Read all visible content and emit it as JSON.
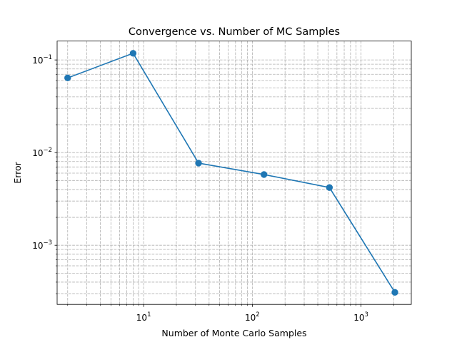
{
  "chart_data": {
    "type": "line",
    "title": "Convergence vs. Number of MC Samples",
    "xlabel": "Number of Monte Carlo Samples",
    "ylabel": "Error",
    "xscale": "log",
    "yscale": "log",
    "xlim": [
      1.6,
      2900
    ],
    "ylim": [
      0.00023,
      0.16
    ],
    "grid": true,
    "grid_which": "both",
    "grid_style": "dashed",
    "x_tick_labels": [
      {
        "value": 10,
        "base": "10",
        "exp": "1"
      },
      {
        "value": 100,
        "base": "10",
        "exp": "2"
      },
      {
        "value": 1000,
        "base": "10",
        "exp": "3"
      }
    ],
    "y_tick_labels": [
      {
        "value": 0.1,
        "base": "10",
        "exp": "−1"
      },
      {
        "value": 0.01,
        "base": "10",
        "exp": "−2"
      },
      {
        "value": 0.001,
        "base": "10",
        "exp": "−3"
      }
    ],
    "series": [
      {
        "color": "#1f77b4",
        "marker": "circle",
        "x": [
          2,
          8,
          32,
          128,
          512,
          2048
        ],
        "y": [
          0.064,
          0.118,
          0.0077,
          0.0058,
          0.0042,
          0.00031
        ]
      }
    ]
  }
}
